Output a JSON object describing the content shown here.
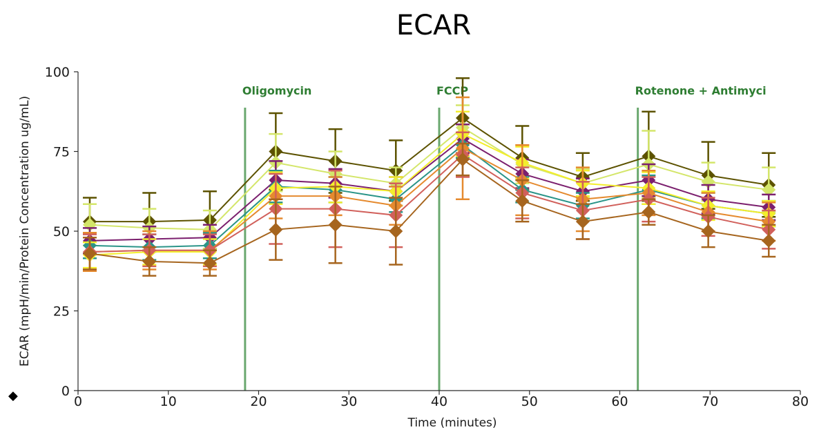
{
  "chart_data": {
    "type": "line",
    "title": "ECAR",
    "xlabel": "Time (minutes)",
    "ylabel": "ECAR (mpH/min/Protein Concentration ug/mL)",
    "xlim": [
      0,
      80
    ],
    "ylim": [
      0,
      100
    ],
    "x_ticks": [
      "0",
      "10",
      "20",
      "30",
      "40",
      "50",
      "60",
      "70",
      "80"
    ],
    "y_ticks": [
      "0",
      "25",
      "50",
      "75",
      "100"
    ],
    "grid": false,
    "legend_marker": "◆",
    "x": [
      1.3,
      7.9,
      14.6,
      21.9,
      28.5,
      35.2,
      42.6,
      49.2,
      55.9,
      63.2,
      69.8,
      76.5
    ],
    "markers": [
      {
        "label": "Oligomycin",
        "x": 18.5,
        "color": "#6aa86f"
      },
      {
        "label": "FCCP",
        "x": 40,
        "color": "#6aa86f"
      },
      {
        "label": "Rotenone + Antimyci",
        "x": 62,
        "color": "#6aa86f"
      }
    ],
    "series": [
      {
        "color": "#5c5200",
        "values": [
          53,
          53,
          53.5,
          75,
          72,
          69,
          85.5,
          73,
          67,
          73.5,
          67.5,
          64.5
        ],
        "errors": [
          7.5,
          9,
          9,
          12,
          10,
          9.5,
          12.5,
          10,
          7.5,
          14,
          10.5,
          10
        ]
      },
      {
        "color": "#d4e66a",
        "values": [
          52,
          51,
          50.5,
          71.5,
          68,
          65,
          82.5,
          71,
          65,
          71,
          65.5,
          63
        ],
        "errors": [
          6.5,
          6,
          6,
          9,
          7,
          5,
          7,
          6,
          4.5,
          10.5,
          6,
          7
        ]
      },
      {
        "color": "#7b1f6e",
        "values": [
          47,
          47.5,
          48,
          66,
          65,
          62.5,
          79,
          68,
          62.5,
          66,
          60,
          57.5
        ],
        "errors": [
          4,
          4,
          4,
          6,
          4.5,
          4.5,
          4.5,
          4.5,
          4,
          5,
          4.5,
          4
        ]
      },
      {
        "color": "#2a9488",
        "values": [
          45.5,
          45,
          45.5,
          64,
          63,
          60,
          77,
          63,
          58,
          63,
          58,
          55.5
        ],
        "errors": [
          4,
          4,
          4,
          5,
          4,
          4,
          4,
          4,
          4,
          4.5,
          4,
          4
        ]
      },
      {
        "color": "#f3ee2c",
        "values": [
          42.5,
          43.5,
          43.5,
          63.5,
          64,
          62.5,
          80.5,
          71.5,
          65,
          63.5,
          58,
          55.5
        ],
        "errors": [
          4,
          4,
          4,
          5,
          5,
          4.5,
          7,
          5,
          4,
          5,
          4.5,
          4
        ]
      },
      {
        "color": "#e58a2e",
        "values": [
          43.5,
          44,
          44,
          61,
          61,
          58,
          76,
          66,
          60,
          62,
          56,
          53
        ],
        "errors": [
          6,
          6,
          6,
          7,
          6,
          6,
          16,
          11,
          10,
          7,
          6,
          6
        ]
      },
      {
        "color": "#d1605b",
        "values": [
          43.5,
          44,
          44,
          57,
          57,
          55,
          74,
          62,
          56.5,
          60,
          54.5,
          50.5
        ],
        "errors": [
          5.5,
          5,
          5,
          11,
          12,
          10,
          7,
          8,
          9,
          7,
          6,
          6
        ]
      },
      {
        "color": "#a6651e",
        "values": [
          43,
          40.5,
          40,
          50.5,
          52,
          50,
          72.5,
          59.5,
          53,
          56,
          50,
          47
        ],
        "errors": [
          5,
          4.5,
          4,
          9.5,
          12,
          10.5,
          5,
          6.5,
          5.5,
          4,
          5,
          5
        ]
      }
    ]
  }
}
